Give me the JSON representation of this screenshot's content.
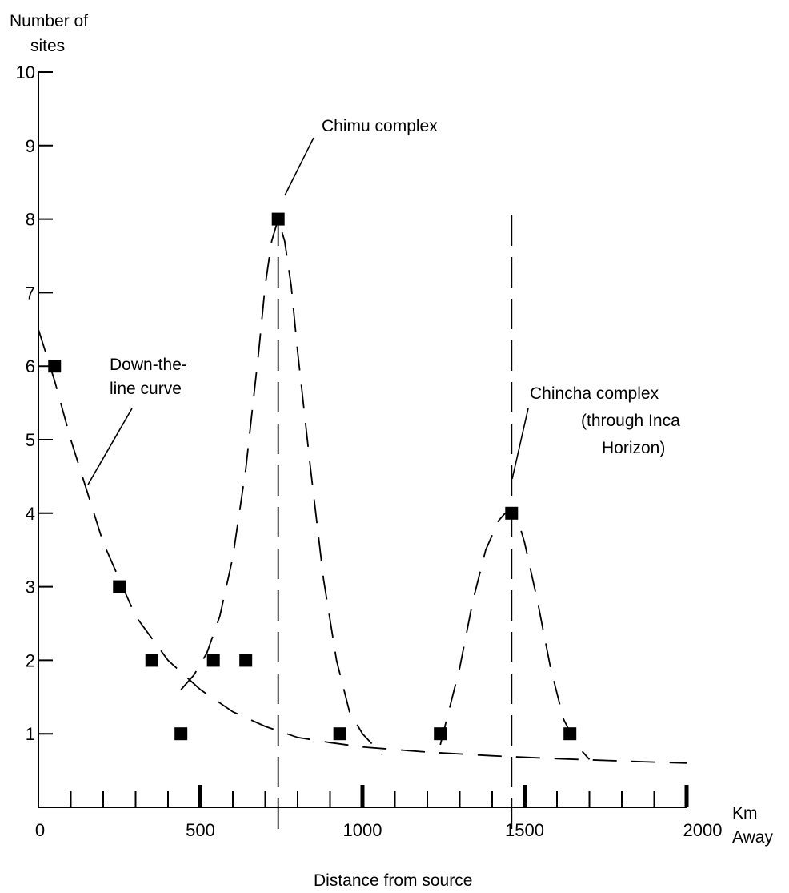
{
  "chart_data": {
    "type": "scatter",
    "ylabel": "Number of sites",
    "xlabel": "Distance from source",
    "x_unit_label": "Km\nAway",
    "xlim": [
      0,
      2000
    ],
    "ylim": [
      0,
      10
    ],
    "x_ticks": [
      0,
      500,
      1000,
      1500,
      2000
    ],
    "y_ticks": [
      1,
      2,
      3,
      4,
      5,
      6,
      7,
      8,
      9,
      10
    ],
    "x_ticks_tick_labels": [
      "0",
      "500",
      "1000",
      "1500",
      "2000"
    ],
    "y_ticks_tick_labels": [
      "1",
      "2",
      "3",
      "4",
      "5",
      "6",
      "7",
      "8",
      "9",
      "10"
    ],
    "grid": false,
    "points": [
      {
        "x": 50,
        "y": 6
      },
      {
        "x": 250,
        "y": 3
      },
      {
        "x": 350,
        "y": 2
      },
      {
        "x": 440,
        "y": 1
      },
      {
        "x": 540,
        "y": 2
      },
      {
        "x": 640,
        "y": 2
      },
      {
        "x": 740,
        "y": 8
      },
      {
        "x": 930,
        "y": 1
      },
      {
        "x": 1240,
        "y": 1
      },
      {
        "x": 1460,
        "y": 4
      },
      {
        "x": 1640,
        "y": 1
      }
    ],
    "curves": [
      {
        "style": "dashed",
        "x": [
          0,
          50,
          100,
          200,
          300,
          400,
          500,
          600,
          700,
          800,
          900,
          1000,
          1200,
          1400,
          1600,
          1800,
          2000
        ],
        "y": [
          6.5,
          5.8,
          5.0,
          3.6,
          2.6,
          2.0,
          1.6,
          1.3,
          1.1,
          0.95,
          0.88,
          0.82,
          0.75,
          0.7,
          0.66,
          0.63,
          0.6
        ]
      },
      {
        "style": "dashed",
        "x": [
          440,
          480,
          520,
          560,
          600,
          640,
          680,
          700,
          720,
          740,
          760,
          780,
          800,
          840,
          880,
          920,
          960,
          1000,
          1060
        ],
        "y": [
          1.6,
          1.8,
          2.1,
          2.6,
          3.4,
          4.6,
          6.2,
          7.1,
          7.7,
          8.0,
          7.7,
          7.1,
          6.2,
          4.6,
          3.1,
          2.0,
          1.3,
          1.0,
          0.72
        ]
      },
      {
        "style": "dashed",
        "x": [
          1240,
          1260,
          1300,
          1340,
          1380,
          1420,
          1440,
          1460,
          1480,
          1500,
          1540,
          1580,
          1620,
          1660,
          1700
        ],
        "y": [
          0.85,
          1.2,
          1.9,
          2.8,
          3.5,
          3.9,
          4.0,
          4.0,
          3.9,
          3.6,
          2.8,
          1.9,
          1.2,
          0.85,
          0.65
        ]
      }
    ],
    "peak_lines": [
      740,
      1460
    ],
    "annotations": [
      {
        "lines": [
          "Down-the-",
          "line curve"
        ]
      },
      {
        "lines": [
          "Chimu complex"
        ]
      },
      {
        "lines": [
          "Chincha complex",
          "(through Inca",
          "Horizon)"
        ]
      }
    ]
  }
}
